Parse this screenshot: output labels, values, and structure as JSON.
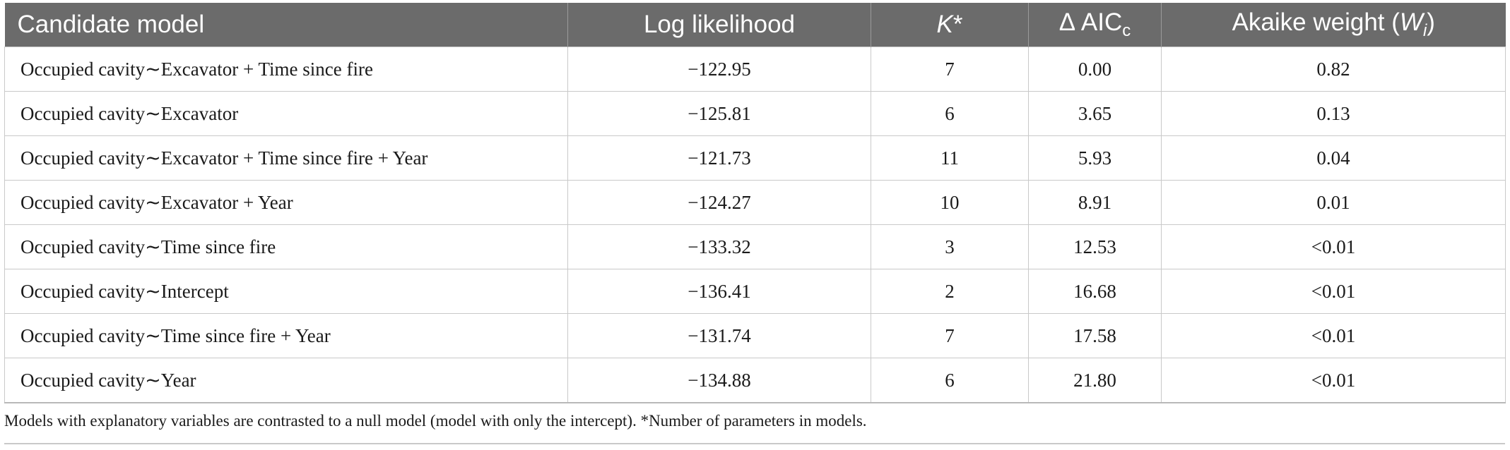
{
  "headers": {
    "candidate_model": "Candidate model",
    "log_likelihood": "Log likelihood",
    "k_main": "K",
    "k_star": "*",
    "delta_aic_main": "Δ AIC",
    "delta_aic_sub": "c",
    "akaike_main": "Akaike weight (",
    "akaike_w": "W",
    "akaike_i": "i",
    "akaike_close": ")"
  },
  "rows": [
    {
      "model": "Occupied cavity∼Excavator + Time since fire",
      "log_likelihood": "−122.95",
      "k": "7",
      "delta_aicc": "0.00",
      "weight": "0.82"
    },
    {
      "model": "Occupied cavity∼Excavator",
      "log_likelihood": "−125.81",
      "k": "6",
      "delta_aicc": "3.65",
      "weight": "0.13"
    },
    {
      "model": "Occupied cavity∼Excavator + Time since fire + Year",
      "log_likelihood": "−121.73",
      "k": "11",
      "delta_aicc": "5.93",
      "weight": "0.04"
    },
    {
      "model": "Occupied cavity∼Excavator + Year",
      "log_likelihood": "−124.27",
      "k": "10",
      "delta_aicc": "8.91",
      "weight": "0.01"
    },
    {
      "model": "Occupied cavity∼Time since fire",
      "log_likelihood": "−133.32",
      "k": "3",
      "delta_aicc": "12.53",
      "weight": "<0.01"
    },
    {
      "model": "Occupied cavity∼Intercept",
      "log_likelihood": "−136.41",
      "k": "2",
      "delta_aicc": "16.68",
      "weight": "<0.01"
    },
    {
      "model": "Occupied cavity∼Time since fire + Year",
      "log_likelihood": "−131.74",
      "k": "7",
      "delta_aicc": "17.58",
      "weight": "<0.01"
    },
    {
      "model": "Occupied cavity∼Year",
      "log_likelihood": "−134.88",
      "k": "6",
      "delta_aicc": "21.80",
      "weight": "<0.01"
    }
  ],
  "footnote": "Models with explanatory variables are contrasted to a null model (model with only the intercept). *Number of parameters in models."
}
